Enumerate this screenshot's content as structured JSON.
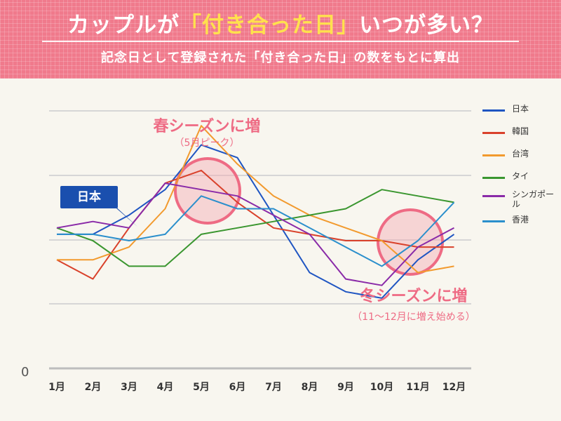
{
  "header": {
    "title_pre": "カップルが",
    "title_highlight": "「付き合った日」",
    "title_post": "いつが多い？",
    "subtitle": "記念日として登録された「付き合った日」の数をもとに算出"
  },
  "annotations": {
    "spring": "春シーズンに増",
    "spring_sub": "（5月ピーク）",
    "winter": "冬シーズンに増",
    "winter_sub": "（11〜12月に増え始める）",
    "japan_tag": "日本"
  },
  "colors": {
    "header_bg": "#f07a8c",
    "title_highlight": "#ffe14d",
    "annotation": "#ee6b84",
    "japan_tag_bg": "#1a4fae"
  },
  "chart_data": {
    "type": "line",
    "categories": [
      "1月",
      "2月",
      "3月",
      "4月",
      "5月",
      "6月",
      "7月",
      "8月",
      "9月",
      "10月",
      "11月",
      "12月"
    ],
    "y_origin_label": "0",
    "grid": true,
    "legend_position": "right",
    "series": [
      {
        "name": "日本",
        "color": "#1f55c2",
        "values": [
          0.21,
          0.21,
          0.24,
          0.28,
          0.35,
          0.33,
          0.24,
          0.15,
          0.12,
          0.11,
          0.17,
          0.21
        ]
      },
      {
        "name": "韓国",
        "color": "#d9412b",
        "values": [
          0.17,
          0.14,
          0.22,
          0.29,
          0.31,
          0.26,
          0.22,
          0.21,
          0.2,
          0.2,
          0.19,
          0.19
        ]
      },
      {
        "name": "台湾",
        "color": "#f29a2e",
        "values": [
          0.17,
          0.17,
          0.19,
          0.25,
          0.38,
          0.32,
          0.27,
          0.24,
          0.22,
          0.2,
          0.15,
          0.16
        ]
      },
      {
        "name": "タイ",
        "color": "#3a962f",
        "values": [
          0.22,
          0.2,
          0.16,
          0.16,
          0.21,
          0.22,
          0.23,
          0.24,
          0.25,
          0.28,
          0.27,
          0.26
        ]
      },
      {
        "name": "シンガポール",
        "color": "#8a2aa8",
        "values": [
          0.22,
          0.23,
          0.22,
          0.29,
          0.28,
          0.27,
          0.24,
          0.21,
          0.14,
          0.13,
          0.19,
          0.22
        ]
      },
      {
        "name": "香港",
        "color": "#2b8fcc",
        "values": [
          0.21,
          0.21,
          0.2,
          0.21,
          0.27,
          0.25,
          0.25,
          0.22,
          0.19,
          0.16,
          0.2,
          0.26
        ]
      }
    ]
  }
}
